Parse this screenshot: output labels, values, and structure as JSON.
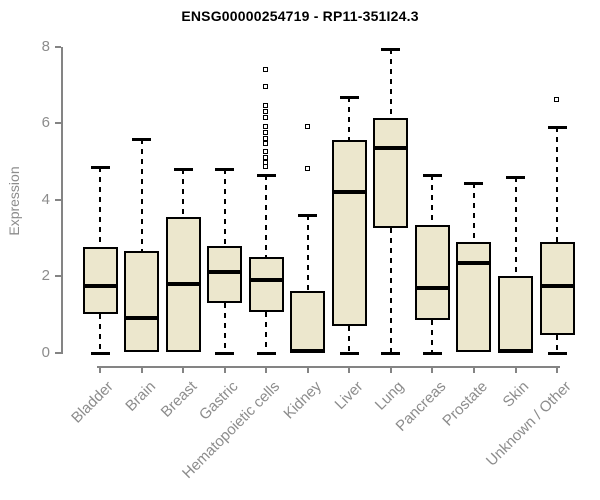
{
  "chart_data": {
    "type": "boxplot",
    "title": "ENSG00000254719 - RP11-351I24.3",
    "ylabel": "Expression",
    "xlabel": "",
    "ylim": [
      0,
      8
    ],
    "yticks": [
      0,
      2,
      4,
      6,
      8
    ],
    "grid": false,
    "legend": "none",
    "box_fill_color": "#ece7cd",
    "box_border_color": "#000000",
    "median_color": "#000000",
    "axis_color": "#848484",
    "tick_text_color": "#8c8c8c",
    "title_color": "#000000",
    "categories": [
      "Bladder",
      "Brain",
      "Breast",
      "Gastric",
      "Hematopoietic cells",
      "Kidney",
      "Liver",
      "Lung",
      "Pancreas",
      "Prostate",
      "Skin",
      "Unknown / Other"
    ],
    "series": [
      {
        "name": "Bladder",
        "min": 0,
        "q1": 1.0,
        "median": 1.75,
        "q3": 2.75,
        "max": 4.85,
        "outliers": []
      },
      {
        "name": "Brain",
        "min": 0,
        "q1": 0,
        "median": 0.9,
        "q3": 2.65,
        "max": 5.6,
        "outliers": []
      },
      {
        "name": "Breast",
        "min": 0,
        "q1": 0,
        "median": 1.8,
        "q3": 3.55,
        "max": 4.8,
        "outliers": []
      },
      {
        "name": "Gastric",
        "min": 0,
        "q1": 1.3,
        "median": 2.1,
        "q3": 2.8,
        "max": 4.8,
        "outliers": []
      },
      {
        "name": "Hematopoietic cells",
        "min": 0,
        "q1": 1.05,
        "median": 1.9,
        "q3": 2.5,
        "max": 4.65,
        "outliers": [
          4.85,
          4.95,
          5.1,
          5.25,
          5.45,
          5.6,
          5.75,
          5.9,
          6.15,
          6.3,
          6.45,
          6.95,
          7.4
        ]
      },
      {
        "name": "Kidney",
        "min": 0,
        "q1": 0,
        "median": 0.05,
        "q3": 1.6,
        "max": 3.6,
        "outliers": [
          4.8,
          5.9
        ]
      },
      {
        "name": "Liver",
        "min": 0,
        "q1": 0.7,
        "median": 4.2,
        "q3": 5.55,
        "max": 6.7,
        "outliers": []
      },
      {
        "name": "Lung",
        "min": 0,
        "q1": 3.25,
        "median": 5.35,
        "q3": 6.15,
        "max": 7.95,
        "outliers": []
      },
      {
        "name": "Pancreas",
        "min": 0,
        "q1": 0.85,
        "median": 1.7,
        "q3": 3.35,
        "max": 4.65,
        "outliers": []
      },
      {
        "name": "Prostate",
        "min": 0,
        "q1": 0,
        "median": 2.35,
        "q3": 2.9,
        "max": 4.45,
        "outliers": []
      },
      {
        "name": "Skin",
        "min": 0,
        "q1": 0,
        "median": 0.05,
        "q3": 2.0,
        "max": 4.6,
        "outliers": []
      },
      {
        "name": "Unknown / Other",
        "min": 0,
        "q1": 0.45,
        "median": 1.75,
        "q3": 2.9,
        "max": 5.9,
        "outliers": [
          6.6
        ]
      }
    ]
  }
}
